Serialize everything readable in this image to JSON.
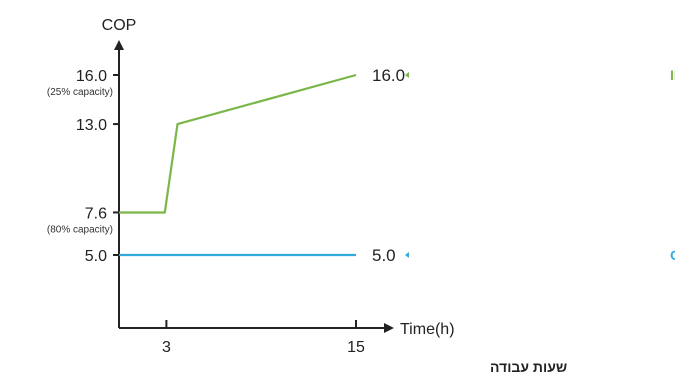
{
  "chart_data": {
    "type": "line",
    "ylabel": "COP",
    "xlabel": "Time(h)",
    "x_caption": "שעות עבודה",
    "xlim": [
      0,
      15
    ],
    "ylim": [
      0,
      18
    ],
    "x_ticks": [
      {
        "value": 3,
        "label": "3"
      },
      {
        "value": 15,
        "label": "15"
      }
    ],
    "y_ticks": [
      {
        "value": 16.0,
        "label": "16.0",
        "color": "#7ab648",
        "note": "(25% capacity)"
      },
      {
        "value": 13.0,
        "label": "13.0",
        "color": "#7ab648",
        "note": ""
      },
      {
        "value": 7.6,
        "label": "7.6",
        "color": "#222222",
        "note": "(80% capacity)"
      },
      {
        "value": 5.0,
        "label": "5.0",
        "color": "#222222",
        "note": ""
      }
    ],
    "series": [
      {
        "name": "משאבת חום INVERTER",
        "color": "#7ab648",
        "end_label": "16.0",
        "points": [
          [
            0,
            7.6
          ],
          [
            2.9,
            7.6
          ],
          [
            3.7,
            13.0
          ],
          [
            15,
            16.0
          ]
        ]
      },
      {
        "name": "משאבת חום רגילה ON/OFF",
        "color": "#33aadd",
        "end_label": "5.0",
        "points": [
          [
            0,
            5.0
          ],
          [
            15,
            5.0
          ]
        ]
      }
    ],
    "grid": false
  }
}
